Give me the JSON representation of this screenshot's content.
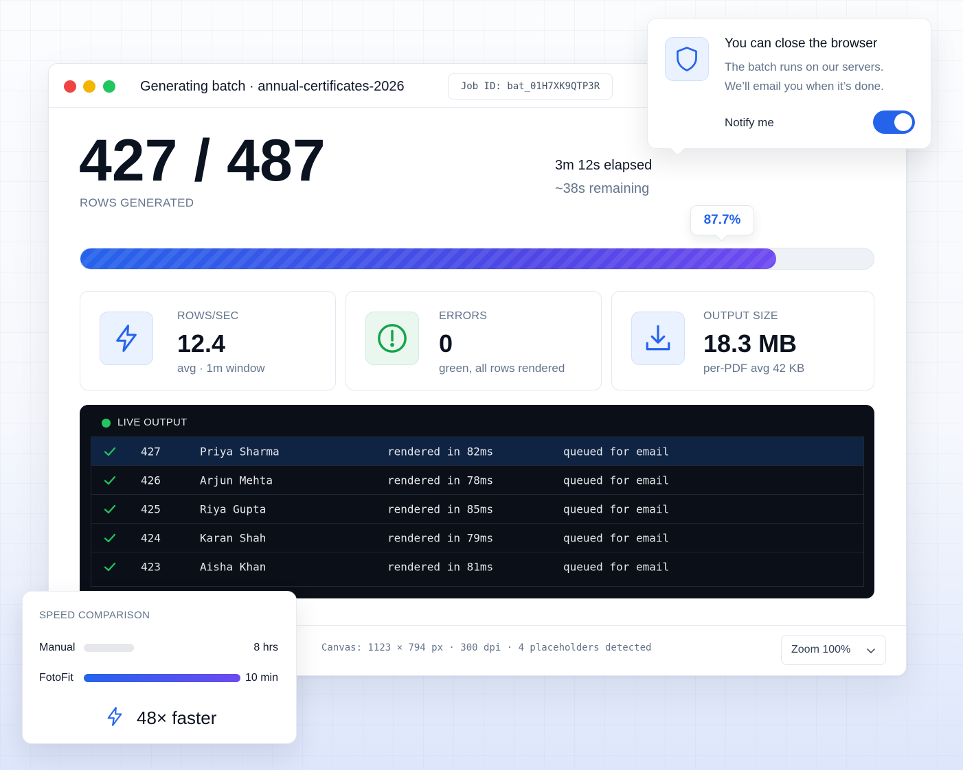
{
  "window": {
    "title": "Generating batch · annual-certificates-2026",
    "job_id": "Job ID: bat_01H7XK9QTP3R"
  },
  "progress": {
    "count": "427 / 487",
    "label": "ROWS GENERATED",
    "elapsed": "3m 12s elapsed",
    "remaining": "~38s remaining",
    "percent_label": "87.7%",
    "fraction": 0.877
  },
  "stats": [
    {
      "label": "ROWS/SEC",
      "value": "12.4",
      "sub": "avg · 1m window",
      "icon": "lightning-icon"
    },
    {
      "label": "ERRORS",
      "value": "0",
      "sub": "green, all rows rendered",
      "icon": "alert-circle-icon"
    },
    {
      "label": "OUTPUT SIZE",
      "value": "18.3 MB",
      "sub": "per-PDF avg 42 KB",
      "icon": "download-icon"
    }
  ],
  "live_output": {
    "label": "LIVE OUTPUT",
    "rows": [
      {
        "num": "427",
        "name": "Priya Sharma",
        "render": "rendered in 82ms",
        "status": "queued for email"
      },
      {
        "num": "426",
        "name": "Arjun Mehta",
        "render": "rendered in 78ms",
        "status": "queued for email"
      },
      {
        "num": "425",
        "name": "Riya Gupta",
        "render": "rendered in 85ms",
        "status": "queued for email"
      },
      {
        "num": "424",
        "name": "Karan Shah",
        "render": "rendered in 79ms",
        "status": "queued for email"
      },
      {
        "num": "423",
        "name": "Aisha Khan",
        "render": "rendered in 81ms",
        "status": "queued for email"
      }
    ]
  },
  "footer": {
    "canvas_info": "Canvas: 1123 × 794 px  ·  300 dpi  ·  4 placeholders detected",
    "zoom": "Zoom 100%"
  },
  "notice": {
    "title": "You can close the browser",
    "line1": "The batch runs on our servers.",
    "line2": "We’ll email you when it’s done.",
    "notify_label": "Notify me",
    "notify_on": true
  },
  "speed": {
    "title": "SPEED COMPARISON",
    "manual_label": "Manual",
    "manual_value": "8 hrs",
    "fotofit_label": "FotoFit",
    "fotofit_value": "10 min",
    "faster": "48× faster"
  },
  "colors": {
    "accent": "#2563eb",
    "accent_purple": "#6d4af0",
    "success": "#22c55e",
    "console_bg": "#0b1018"
  }
}
